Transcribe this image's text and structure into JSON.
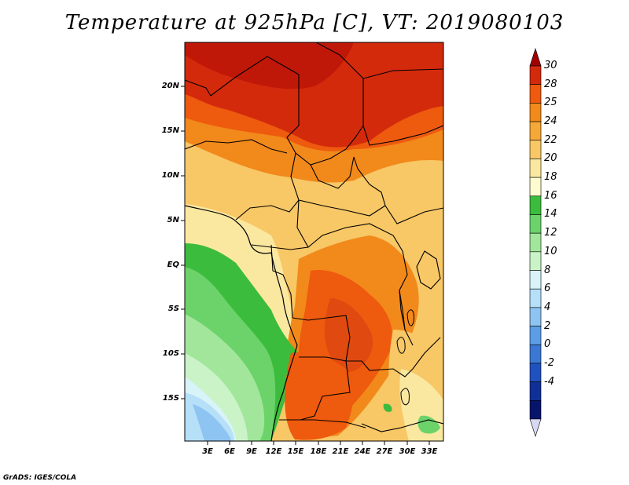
{
  "title": "Temperature at 925hPa [C], VT: 2019080103",
  "footer": "GrADS: IGES/COLA",
  "map": {
    "lat_labels": [
      "20N",
      "15N",
      "10N",
      "5N",
      "EQ",
      "5S",
      "10S",
      "15S"
    ],
    "lon_labels": [
      "3E",
      "6E",
      "9E",
      "12E",
      "15E",
      "18E",
      "21E",
      "24E",
      "27E",
      "30E",
      "33E"
    ]
  },
  "colorbar": {
    "labels": [
      "30",
      "28",
      "25",
      "24",
      "22",
      "20",
      "18",
      "16",
      "14",
      "12",
      "10",
      "8",
      "6",
      "4",
      "2",
      "0",
      "-2",
      "-4"
    ],
    "colors": [
      "#a00000",
      "#d42a0c",
      "#ee5a0e",
      "#f2891b",
      "#f5a738",
      "#f8c766",
      "#fbe8a0",
      "#fdfbd0",
      "#3cbc3c",
      "#6cd36a",
      "#a2e69c",
      "#caf3c8",
      "#d8f4f8",
      "#b6e0f8",
      "#8ec4f2",
      "#5c9ee6",
      "#3a78d4",
      "#1f52c0",
      "#103098",
      "#06156b",
      "#d8d8f4"
    ]
  }
}
